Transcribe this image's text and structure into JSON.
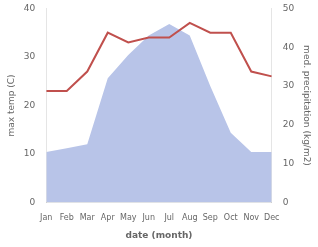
{
  "chart_data": {
    "type": "line",
    "xlabel": "date (month)",
    "ylabel": "max temp (C)",
    "y2label": "med. precipitation (kg/m2)",
    "categories": [
      "Jan",
      "Feb",
      "Mar",
      "Apr",
      "May",
      "Jun",
      "Jul",
      "Aug",
      "Sep",
      "Oct",
      "Nov",
      "Dec"
    ],
    "series": [
      {
        "type": "area",
        "axis": "y2",
        "color": "#b8c4e8",
        "values": [
          13,
          14,
          15,
          32,
          38,
          43,
          46,
          43,
          30,
          18,
          13,
          13
        ]
      },
      {
        "type": "line",
        "color": "#c0504d",
        "values": [
          23,
          23,
          27,
          35,
          33,
          34,
          34,
          37,
          35,
          35,
          27,
          26
        ]
      }
    ],
    "ylim": [
      0,
      40
    ],
    "yticks": [
      0,
      10,
      20,
      30,
      40
    ],
    "y2lim": [
      0,
      50
    ],
    "y2ticks": [
      0,
      10,
      20,
      30,
      40,
      50
    ],
    "grid": false
  }
}
